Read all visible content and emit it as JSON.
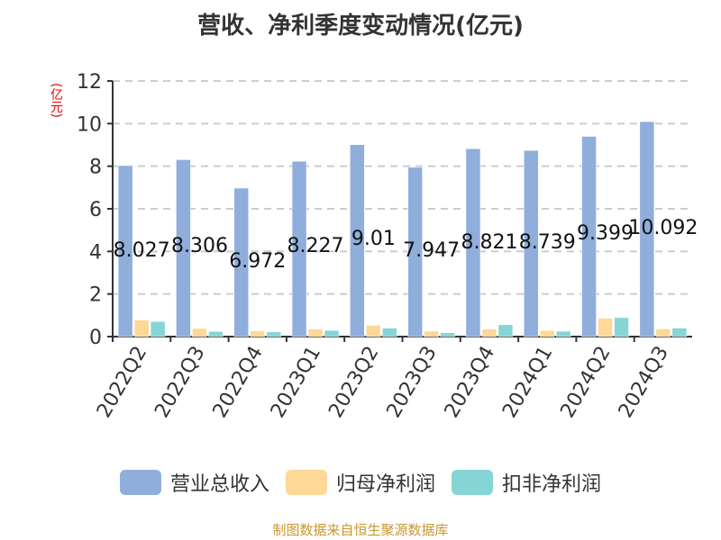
{
  "title": "营收、净利季度变动情况(亿元)",
  "unit_label": "(亿元)",
  "source": "制图数据来自恒生聚源数据库",
  "colors": {
    "revenue": "#8faedc",
    "net_profit": "#fdd896",
    "deducted_net_profit": "#86d5d6",
    "axis": "#333333",
    "grid": "#cccccc",
    "unit": "#ee0000",
    "source": "#c8962e"
  },
  "legend": [
    {
      "label": "营业总收入",
      "color": "#8faedc"
    },
    {
      "label": "归母净利润",
      "color": "#fdd896"
    },
    {
      "label": "扣非净利润",
      "color": "#86d5d6"
    }
  ],
  "chart_data": {
    "type": "bar",
    "title": "营收、净利季度变动情况(亿元)",
    "xlabel": "",
    "ylabel": "(亿元)",
    "ylim": [
      0,
      12
    ],
    "yticks": [
      0,
      2,
      4,
      6,
      8,
      10,
      12
    ],
    "grid": true,
    "legend_position": "bottom",
    "categories": [
      "2022Q2",
      "2022Q3",
      "2022Q4",
      "2023Q1",
      "2023Q2",
      "2023Q3",
      "2023Q4",
      "2024Q1",
      "2024Q2",
      "2024Q3"
    ],
    "series": [
      {
        "name": "营业总收入",
        "values": [
          8.027,
          8.306,
          6.972,
          8.227,
          9.01,
          7.947,
          8.821,
          8.739,
          9.399,
          10.092
        ],
        "labels": [
          "8.027",
          "8.306",
          "6.972",
          "8.227",
          "9.01",
          "7.947",
          "8.821",
          "8.739",
          "9.399",
          "10.092"
        ]
      },
      {
        "name": "归母净利润",
        "values": [
          0.78,
          0.38,
          0.27,
          0.35,
          0.53,
          0.26,
          0.35,
          0.29,
          0.86,
          0.36
        ]
      },
      {
        "name": "扣非净利润",
        "values": [
          0.71,
          0.24,
          0.22,
          0.29,
          0.4,
          0.18,
          0.56,
          0.25,
          0.89,
          0.4
        ]
      }
    ]
  }
}
